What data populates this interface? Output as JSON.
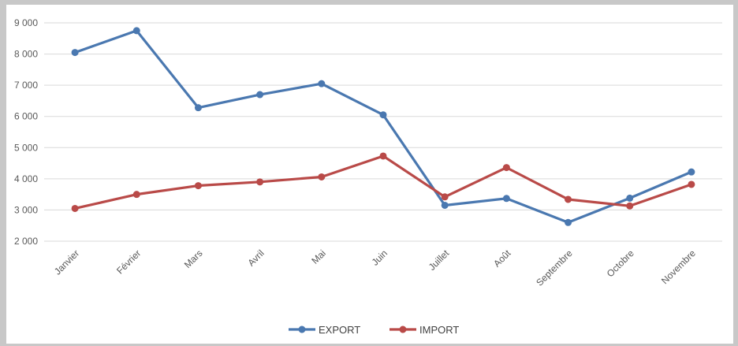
{
  "chart_data": {
    "type": "line",
    "categories": [
      "Janvier",
      "Février",
      "Mars",
      "Avril",
      "Mai",
      "Juin",
      "Juillet",
      "Août",
      "Septembre",
      "Octobre",
      "Novembre"
    ],
    "series": [
      {
        "name": "EXPORT",
        "color": "#4a78b0",
        "values": [
          8050,
          8750,
          6280,
          6700,
          7050,
          6050,
          3150,
          3370,
          2600,
          3380,
          4220
        ]
      },
      {
        "name": "IMPORT",
        "color": "#b94a48",
        "values": [
          3050,
          3500,
          3780,
          3900,
          4060,
          4730,
          3420,
          4360,
          3340,
          3130,
          3820
        ]
      }
    ],
    "yticks": [
      "2 000",
      "3 000",
      "4 000",
      "5 000",
      "6 000",
      "7 000",
      "8 000",
      "9 000"
    ],
    "ytick_values": [
      2000,
      3000,
      4000,
      5000,
      6000,
      7000,
      8000,
      9000
    ],
    "ylim": [
      2000,
      9000
    ],
    "grid": true,
    "legend_position": "bottom",
    "title": "",
    "xlabel": "",
    "ylabel": ""
  }
}
